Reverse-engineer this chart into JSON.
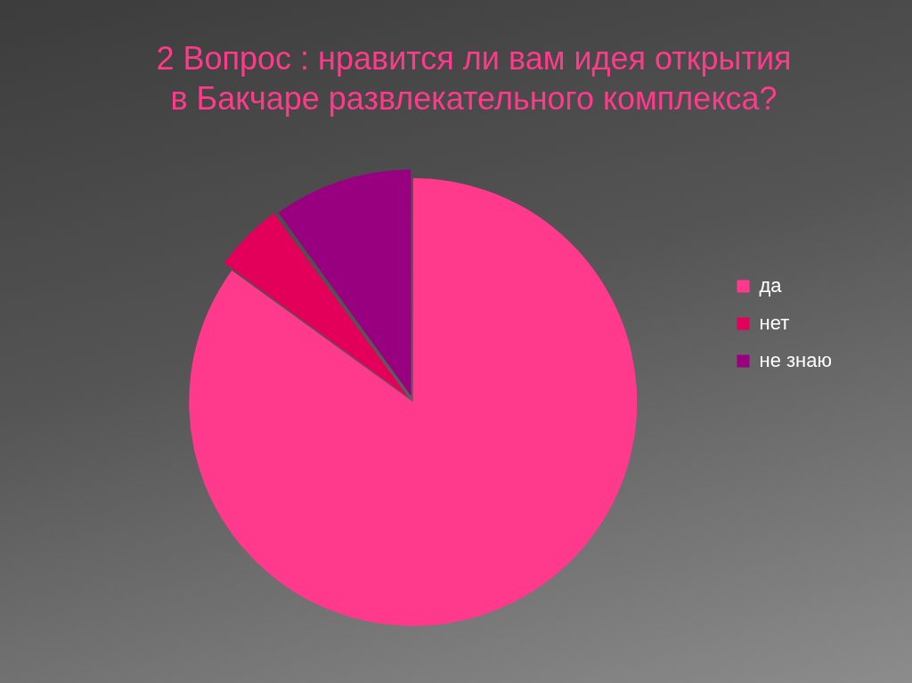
{
  "chart_data": {
    "type": "pie",
    "title": "2 Вопрос : нравится ли вам идея открытия в Бакчаре развлекательного комплекса?",
    "categories": [
      "да",
      "нет",
      "не знаю"
    ],
    "values": [
      85,
      5,
      10
    ],
    "colors": [
      "#ff3a8c",
      "#e3005b",
      "#990080"
    ],
    "legend": "right"
  }
}
